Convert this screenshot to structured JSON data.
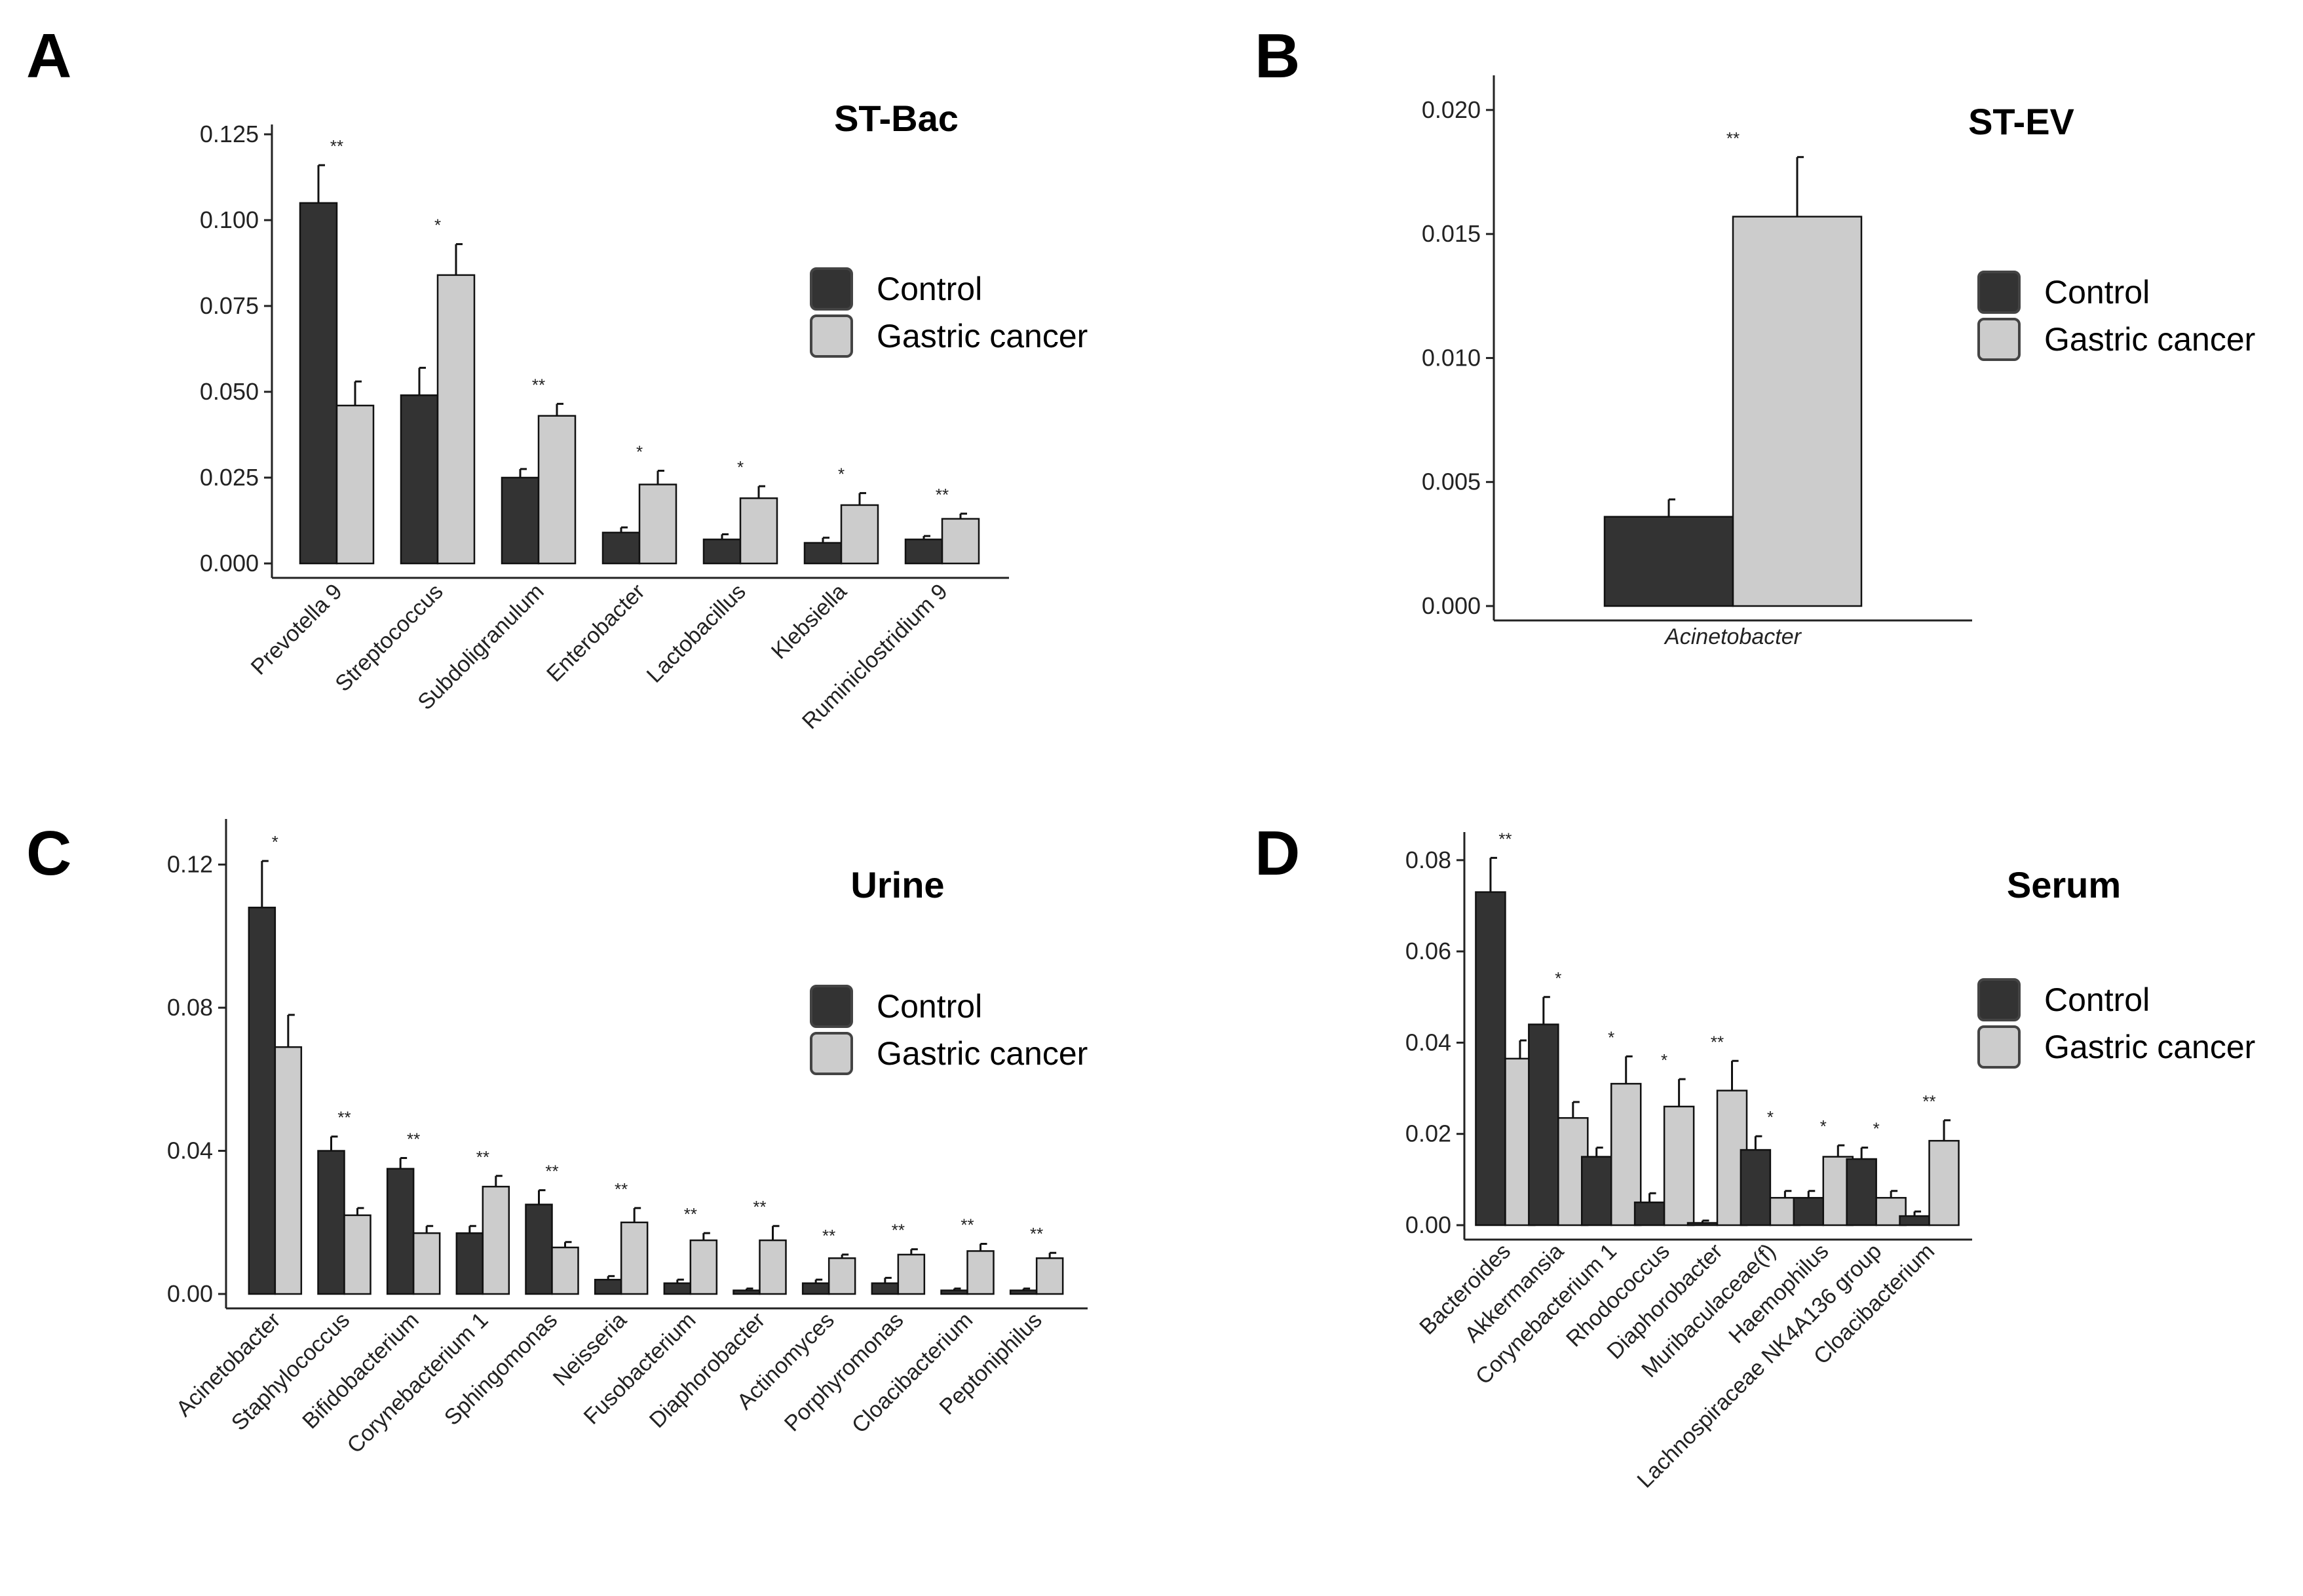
{
  "colors": {
    "control": "#333333",
    "gastric_cancer": "#cccccc"
  },
  "chart_data": [
    {
      "panel": "A",
      "type": "bar",
      "title": "ST-Bac",
      "legend": [
        "Control",
        "Gastric cancer"
      ],
      "ylim": [
        0,
        0.125
      ],
      "yticks": [
        0.0,
        0.025,
        0.05,
        0.075,
        0.1,
        0.125
      ],
      "ytick_labels": [
        "0.000",
        "0.025",
        "0.050",
        "0.075",
        "0.100",
        "0.125"
      ],
      "categories": [
        "Prevotella 9",
        "Streptococcus",
        "Subdoligranulum",
        "Enterobacter",
        "Lactobacillus",
        "Klebsiella",
        "Ruminiclostridium 9"
      ],
      "series": [
        {
          "name": "Control",
          "values": [
            0.105,
            0.049,
            0.025,
            0.009,
            0.007,
            0.006,
            0.007
          ],
          "errors": [
            0.011,
            0.008,
            0.0025,
            0.0015,
            0.0015,
            0.0015,
            0.001
          ]
        },
        {
          "name": "Gastric cancer",
          "values": [
            0.046,
            0.084,
            0.043,
            0.023,
            0.019,
            0.017,
            0.013
          ],
          "errors": [
            0.007,
            0.009,
            0.0035,
            0.004,
            0.0035,
            0.0035,
            0.0015
          ]
        }
      ],
      "significance": [
        "**",
        "*",
        "**",
        "*",
        "*",
        "*",
        "**"
      ]
    },
    {
      "panel": "B",
      "type": "bar",
      "title": "ST-EV",
      "legend": [
        "Control",
        "Gastric cancer"
      ],
      "ylim": [
        0,
        0.021
      ],
      "yticks": [
        0.0,
        0.005,
        0.01,
        0.015,
        0.02
      ],
      "ytick_labels": [
        "0.000",
        "0.005",
        "0.010",
        "0.015",
        "0.020"
      ],
      "categories": [
        "Acinetobacter"
      ],
      "series": [
        {
          "name": "Control",
          "values": [
            0.0036
          ],
          "errors": [
            0.0007
          ]
        },
        {
          "name": "Gastric cancer",
          "values": [
            0.0157
          ],
          "errors": [
            0.0024
          ]
        }
      ],
      "significance": [
        "**"
      ]
    },
    {
      "panel": "C",
      "type": "bar",
      "title": "Urine",
      "legend": [
        "Control",
        "Gastric cancer"
      ],
      "ylim": [
        0,
        0.13
      ],
      "yticks": [
        0.0,
        0.04,
        0.08,
        0.12
      ],
      "ytick_labels": [
        "0.00",
        "0.04",
        "0.08",
        "0.12"
      ],
      "categories": [
        "Acinetobacter",
        "Staphylococcus",
        "Bifidobacterium",
        "Corynebacterium 1",
        "Sphingomonas",
        "Neisseria",
        "Fusobacterium",
        "Diaphorobacter",
        "Actinomyces",
        "Porphyromonas",
        "Cloacibacterium",
        "Peptoniphilus"
      ],
      "series": [
        {
          "name": "Control",
          "values": [
            0.108,
            0.04,
            0.035,
            0.017,
            0.025,
            0.004,
            0.003,
            0.001,
            0.003,
            0.003,
            0.001,
            0.001
          ],
          "errors": [
            0.013,
            0.004,
            0.003,
            0.002,
            0.004,
            0.001,
            0.001,
            0.0005,
            0.001,
            0.0015,
            0.0005,
            0.0005
          ]
        },
        {
          "name": "Gastric cancer",
          "values": [
            0.069,
            0.022,
            0.017,
            0.03,
            0.013,
            0.02,
            0.015,
            0.015,
            0.01,
            0.011,
            0.012,
            0.01
          ],
          "errors": [
            0.009,
            0.002,
            0.002,
            0.003,
            0.0015,
            0.004,
            0.002,
            0.004,
            0.001,
            0.0015,
            0.002,
            0.0015
          ]
        }
      ],
      "significance": [
        "*",
        "**",
        "**",
        "**",
        "**",
        "**",
        "**",
        "**",
        "**",
        "**",
        "**",
        "**"
      ]
    },
    {
      "panel": "D",
      "type": "bar",
      "title": "Serum",
      "legend": [
        "Control",
        "Gastric cancer"
      ],
      "ylim": [
        0,
        0.084
      ],
      "yticks": [
        0.0,
        0.02,
        0.04,
        0.06,
        0.08
      ],
      "ytick_labels": [
        "0.00",
        "0.02",
        "0.04",
        "0.06",
        "0.08"
      ],
      "categories": [
        "Bacteroides",
        "Akkermansia",
        "Corynebacterium 1",
        "Rhodococcus",
        "Diaphorobacter",
        "Muribaculaceae(f)",
        "Haemophilus",
        "Lachnospiraceae NK4A136 group",
        "Cloacibacterium"
      ],
      "series": [
        {
          "name": "Control",
          "values": [
            0.073,
            0.044,
            0.015,
            0.005,
            0.0005,
            0.0165,
            0.006,
            0.0145,
            0.002
          ],
          "errors": [
            0.0075,
            0.006,
            0.002,
            0.002,
            0.0005,
            0.003,
            0.0015,
            0.0025,
            0.001
          ]
        },
        {
          "name": "Gastric cancer",
          "values": [
            0.0365,
            0.0235,
            0.031,
            0.026,
            0.0295,
            0.006,
            0.015,
            0.006,
            0.0185
          ],
          "errors": [
            0.004,
            0.0035,
            0.006,
            0.006,
            0.0065,
            0.0015,
            0.0025,
            0.0015,
            0.0045
          ]
        }
      ],
      "significance": [
        "**",
        "*",
        "*",
        "*",
        "**",
        "*",
        "*",
        "*",
        "**"
      ]
    }
  ]
}
